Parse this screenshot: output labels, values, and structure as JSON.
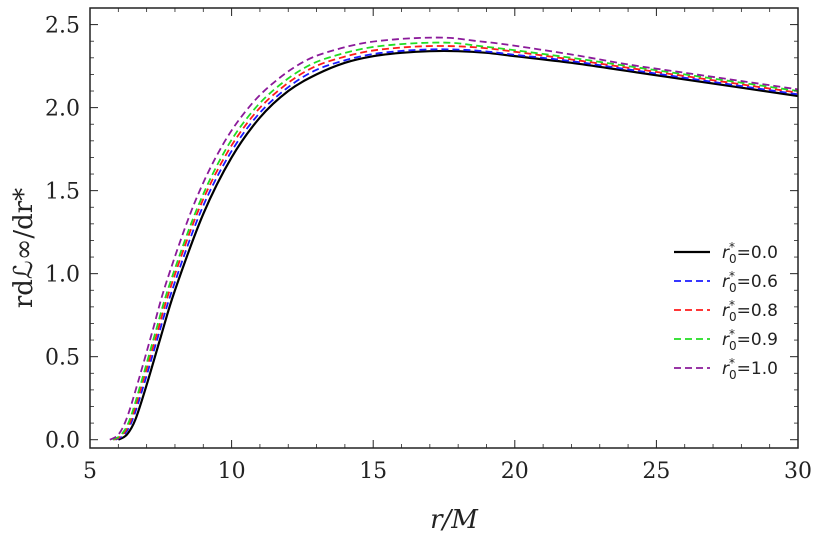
{
  "chart_data": {
    "type": "line",
    "xlabel": "r/M",
    "ylabel": "rdℒ∞/dr*",
    "xlim": [
      5,
      30
    ],
    "ylim": [
      -0.05,
      2.6
    ],
    "xticks": [
      5,
      10,
      15,
      20,
      25,
      30
    ],
    "yticks": [
      0.0,
      0.5,
      1.0,
      1.5,
      2.0,
      2.5
    ],
    "xtick_labels": [
      "5",
      "10",
      "15",
      "20",
      "25",
      "30"
    ],
    "ytick_labels": [
      "0.0",
      "0.5",
      "1.0",
      "1.5",
      "2.0",
      "2.5"
    ],
    "legend_position": "right",
    "grid": false,
    "series": [
      {
        "name": "r0*=0.0",
        "label_main": "r",
        "label_sup": "*",
        "label_sub": "0",
        "label_value": "=0.0",
        "color": "#000000",
        "dash": "solid",
        "x": [
          6.0,
          6.3,
          6.6,
          7.0,
          7.5,
          8.0,
          9.0,
          10.0,
          11.0,
          12.0,
          13.0,
          14.0,
          15.0,
          16.0,
          17.0,
          18.0,
          19.0,
          20.0,
          22.0,
          24.0,
          26.0,
          28.0,
          30.0
        ],
        "y": [
          0.0,
          0.03,
          0.12,
          0.33,
          0.62,
          0.9,
          1.36,
          1.7,
          1.94,
          2.1,
          2.2,
          2.27,
          2.31,
          2.33,
          2.34,
          2.34,
          2.33,
          2.31,
          2.27,
          2.22,
          2.17,
          2.12,
          2.07
        ]
      },
      {
        "name": "r0*=0.6",
        "label_main": "r",
        "label_sup": "*",
        "label_sub": "0",
        "label_value": "=0.6",
        "color": "#1a1aff",
        "dash": "dashed",
        "x": [
          5.9,
          6.2,
          6.5,
          6.9,
          7.4,
          7.9,
          8.9,
          9.9,
          10.9,
          11.9,
          12.9,
          13.9,
          14.9,
          15.9,
          16.9,
          17.9,
          18.9,
          19.9,
          22.0,
          24.0,
          26.0,
          28.0,
          30.0
        ],
        "y": [
          0.0,
          0.03,
          0.12,
          0.33,
          0.62,
          0.9,
          1.37,
          1.71,
          1.95,
          2.11,
          2.22,
          2.28,
          2.32,
          2.34,
          2.35,
          2.35,
          2.34,
          2.32,
          2.28,
          2.23,
          2.18,
          2.13,
          2.08
        ]
      },
      {
        "name": "r0*=0.8",
        "label_main": "r",
        "label_sup": "*",
        "label_sub": "0",
        "label_value": "=0.8",
        "color": "#ff1a1a",
        "dash": "dashed",
        "x": [
          5.85,
          6.15,
          6.45,
          6.85,
          7.35,
          7.85,
          8.85,
          9.85,
          10.85,
          11.85,
          12.85,
          13.85,
          14.85,
          15.85,
          16.85,
          17.85,
          18.85,
          19.85,
          22.0,
          24.0,
          26.0,
          28.0,
          30.0
        ],
        "y": [
          0.0,
          0.03,
          0.12,
          0.34,
          0.63,
          0.92,
          1.39,
          1.73,
          1.97,
          2.13,
          2.24,
          2.3,
          2.34,
          2.36,
          2.37,
          2.37,
          2.36,
          2.34,
          2.29,
          2.24,
          2.19,
          2.14,
          2.09
        ]
      },
      {
        "name": "r0*=0.9",
        "label_main": "r",
        "label_sup": "*",
        "label_sub": "0",
        "label_value": "=0.9",
        "color": "#22dd22",
        "dash": "dashed",
        "x": [
          5.8,
          6.1,
          6.4,
          6.8,
          7.3,
          7.8,
          8.8,
          9.8,
          10.8,
          11.8,
          12.8,
          13.8,
          14.8,
          15.8,
          16.8,
          17.8,
          18.8,
          19.8,
          22.0,
          24.0,
          26.0,
          28.0,
          30.0
        ],
        "y": [
          0.0,
          0.03,
          0.12,
          0.34,
          0.64,
          0.93,
          1.4,
          1.75,
          1.99,
          2.15,
          2.26,
          2.32,
          2.36,
          2.38,
          2.39,
          2.39,
          2.37,
          2.35,
          2.3,
          2.25,
          2.2,
          2.15,
          2.1
        ]
      },
      {
        "name": "r0*=1.0",
        "label_main": "r",
        "label_sup": "*",
        "label_sub": "0",
        "label_value": "=1.0",
        "color": "#8b1a9a",
        "dash": "dashed",
        "x": [
          5.7,
          6.0,
          6.3,
          6.7,
          7.2,
          7.7,
          8.7,
          9.7,
          10.7,
          11.7,
          12.7,
          13.7,
          14.7,
          15.7,
          16.7,
          17.7,
          18.7,
          19.7,
          22.0,
          24.0,
          26.0,
          28.0,
          30.0
        ],
        "y": [
          0.0,
          0.03,
          0.13,
          0.35,
          0.65,
          0.95,
          1.43,
          1.78,
          2.02,
          2.18,
          2.29,
          2.35,
          2.39,
          2.41,
          2.42,
          2.42,
          2.4,
          2.38,
          2.32,
          2.26,
          2.21,
          2.16,
          2.11
        ]
      }
    ]
  }
}
